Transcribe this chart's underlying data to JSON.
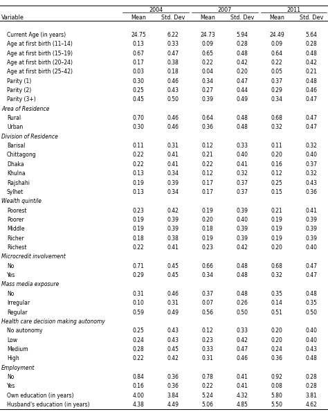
{
  "years": [
    "2004",
    "2007",
    "2011"
  ],
  "rows": [
    {
      "label": "Variable",
      "values": null,
      "is_section": false,
      "is_col_header": true
    },
    {
      "label": "Current Age (in years)",
      "values": [
        24.75,
        6.22,
        24.73,
        5.94,
        24.49,
        5.64
      ],
      "is_section": false,
      "is_col_header": false
    },
    {
      "label": "Age at first birth (11–14)",
      "values": [
        0.13,
        0.33,
        0.09,
        0.28,
        0.09,
        0.28
      ],
      "is_section": false,
      "is_col_header": false
    },
    {
      "label": "Age at first birth (15–19)",
      "values": [
        0.67,
        0.47,
        0.65,
        0.48,
        0.64,
        0.48
      ],
      "is_section": false,
      "is_col_header": false
    },
    {
      "label": "Age at first birth (20–24)",
      "values": [
        0.17,
        0.38,
        0.22,
        0.42,
        0.22,
        0.42
      ],
      "is_section": false,
      "is_col_header": false
    },
    {
      "label": "Age at first birth (25–42)",
      "values": [
        0.03,
        0.18,
        0.04,
        0.2,
        0.05,
        0.21
      ],
      "is_section": false,
      "is_col_header": false
    },
    {
      "label": "Parity (1)",
      "values": [
        0.3,
        0.46,
        0.34,
        0.47,
        0.37,
        0.48
      ],
      "is_section": false,
      "is_col_header": false
    },
    {
      "label": "Parity (2)",
      "values": [
        0.25,
        0.43,
        0.27,
        0.44,
        0.29,
        0.46
      ],
      "is_section": false,
      "is_col_header": false
    },
    {
      "label": "Parity (3+)",
      "values": [
        0.45,
        0.5,
        0.39,
        0.49,
        0.34,
        0.47
      ],
      "is_section": false,
      "is_col_header": false
    },
    {
      "label": "Area of Residence",
      "values": null,
      "is_section": true,
      "is_col_header": false
    },
    {
      "label": "Rural",
      "values": [
        0.7,
        0.46,
        0.64,
        0.48,
        0.68,
        0.47
      ],
      "is_section": false,
      "is_col_header": false
    },
    {
      "label": "Urban",
      "values": [
        0.3,
        0.46,
        0.36,
        0.48,
        0.32,
        0.47
      ],
      "is_section": false,
      "is_col_header": false
    },
    {
      "label": "Division of Residence",
      "values": null,
      "is_section": true,
      "is_col_header": false
    },
    {
      "label": "Barisal",
      "values": [
        0.11,
        0.31,
        0.12,
        0.33,
        0.11,
        0.32
      ],
      "is_section": false,
      "is_col_header": false
    },
    {
      "label": "Chittagong",
      "values": [
        0.22,
        0.41,
        0.21,
        0.4,
        0.2,
        0.4
      ],
      "is_section": false,
      "is_col_header": false
    },
    {
      "label": "Dhaka",
      "values": [
        0.22,
        0.41,
        0.22,
        0.41,
        0.16,
        0.37
      ],
      "is_section": false,
      "is_col_header": false
    },
    {
      "label": "Khulna",
      "values": [
        0.13,
        0.34,
        0.12,
        0.32,
        0.12,
        0.32
      ],
      "is_section": false,
      "is_col_header": false
    },
    {
      "label": "Rajshahi",
      "values": [
        0.19,
        0.39,
        0.17,
        0.37,
        0.25,
        0.43
      ],
      "is_section": false,
      "is_col_header": false
    },
    {
      "label": "Sylhet",
      "values": [
        0.13,
        0.34,
        0.17,
        0.37,
        0.15,
        0.36
      ],
      "is_section": false,
      "is_col_header": false
    },
    {
      "label": "Wealth quintile",
      "values": null,
      "is_section": true,
      "is_col_header": false
    },
    {
      "label": "Poorest",
      "values": [
        0.23,
        0.42,
        0.19,
        0.39,
        0.21,
        0.41
      ],
      "is_section": false,
      "is_col_header": false
    },
    {
      "label": "Poorer",
      "values": [
        0.19,
        0.39,
        0.2,
        0.4,
        0.19,
        0.39
      ],
      "is_section": false,
      "is_col_header": false
    },
    {
      "label": "Middle",
      "values": [
        0.19,
        0.39,
        0.18,
        0.39,
        0.19,
        0.39
      ],
      "is_section": false,
      "is_col_header": false
    },
    {
      "label": "Richer",
      "values": [
        0.18,
        0.38,
        0.19,
        0.39,
        0.19,
        0.39
      ],
      "is_section": false,
      "is_col_header": false
    },
    {
      "label": "Richest",
      "values": [
        0.22,
        0.41,
        0.23,
        0.42,
        0.2,
        0.4
      ],
      "is_section": false,
      "is_col_header": false
    },
    {
      "label": "Microcredit involvement",
      "values": null,
      "is_section": true,
      "is_col_header": false
    },
    {
      "label": "No",
      "values": [
        0.71,
        0.45,
        0.66,
        0.48,
        0.68,
        0.47
      ],
      "is_section": false,
      "is_col_header": false
    },
    {
      "label": "Yes",
      "values": [
        0.29,
        0.45,
        0.34,
        0.48,
        0.32,
        0.47
      ],
      "is_section": false,
      "is_col_header": false
    },
    {
      "label": "Mass media exposure",
      "values": null,
      "is_section": true,
      "is_col_header": false
    },
    {
      "label": "No",
      "values": [
        0.31,
        0.46,
        0.37,
        0.48,
        0.35,
        0.48
      ],
      "is_section": false,
      "is_col_header": false
    },
    {
      "label": "Irregular",
      "values": [
        0.1,
        0.31,
        0.07,
        0.26,
        0.14,
        0.35
      ],
      "is_section": false,
      "is_col_header": false
    },
    {
      "label": "Regular",
      "values": [
        0.59,
        0.49,
        0.56,
        0.5,
        0.51,
        0.5
      ],
      "is_section": false,
      "is_col_header": false
    },
    {
      "label": "Health care decision making autonomy",
      "values": null,
      "is_section": true,
      "is_col_header": false
    },
    {
      "label": "No autonomy",
      "values": [
        0.25,
        0.43,
        0.12,
        0.33,
        0.2,
        0.4
      ],
      "is_section": false,
      "is_col_header": false
    },
    {
      "label": "Low",
      "values": [
        0.24,
        0.43,
        0.23,
        0.42,
        0.2,
        0.4
      ],
      "is_section": false,
      "is_col_header": false
    },
    {
      "label": "Medium",
      "values": [
        0.28,
        0.45,
        0.33,
        0.47,
        0.24,
        0.43
      ],
      "is_section": false,
      "is_col_header": false
    },
    {
      "label": "High",
      "values": [
        0.22,
        0.42,
        0.31,
        0.46,
        0.36,
        0.48
      ],
      "is_section": false,
      "is_col_header": false
    },
    {
      "label": "Employment",
      "values": null,
      "is_section": true,
      "is_col_header": false
    },
    {
      "label": "No",
      "values": [
        0.84,
        0.36,
        0.78,
        0.41,
        0.92,
        0.28
      ],
      "is_section": false,
      "is_col_header": false
    },
    {
      "label": "Yes",
      "values": [
        0.16,
        0.36,
        0.22,
        0.41,
        0.08,
        0.28
      ],
      "is_section": false,
      "is_col_header": false
    },
    {
      "label": "Own education (in years)",
      "values": [
        4.0,
        3.84,
        5.24,
        4.32,
        5.8,
        3.81
      ],
      "is_section": false,
      "is_col_header": false
    },
    {
      "label": "Husband's education (in years)",
      "values": [
        4.38,
        4.49,
        5.06,
        4.85,
        5.5,
        4.62
      ],
      "is_section": false,
      "is_col_header": false
    }
  ],
  "col_headers": [
    "Mean",
    "Std. Dev",
    "Mean",
    "Std. Dev",
    "Mean",
    "Std. Dev"
  ],
  "bg_color": "#ffffff",
  "text_color": "#000000",
  "line_color": "#000000",
  "fontsize_data": 5.5,
  "fontsize_header": 5.8,
  "fontsize_section": 5.5
}
